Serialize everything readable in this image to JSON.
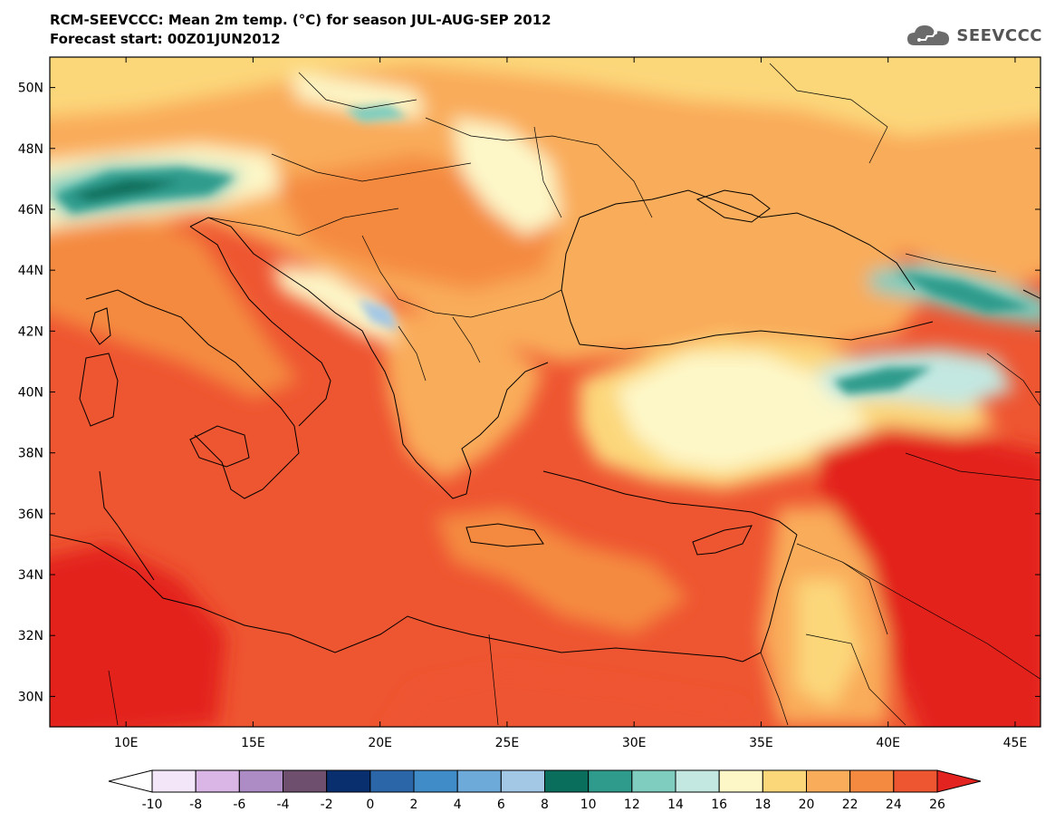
{
  "header": {
    "title": "RCM-SEEVCCC: Mean 2m temp. (°C) for season JUL-AUG-SEP 2012",
    "subtitle": "Forecast start: 00Z01JUN2012"
  },
  "logo": {
    "text": "SEEVCCC",
    "icon": "cloud-icon"
  },
  "map": {
    "lon_range": [
      7,
      46
    ],
    "lat_range": [
      29,
      51
    ],
    "lat_ticks": [
      {
        "value": 50,
        "label": "50N"
      },
      {
        "value": 48,
        "label": "48N"
      },
      {
        "value": 46,
        "label": "46N"
      },
      {
        "value": 44,
        "label": "44N"
      },
      {
        "value": 42,
        "label": "42N"
      },
      {
        "value": 40,
        "label": "40N"
      },
      {
        "value": 38,
        "label": "38N"
      },
      {
        "value": 36,
        "label": "36N"
      },
      {
        "value": 34,
        "label": "34N"
      },
      {
        "value": 32,
        "label": "32N"
      },
      {
        "value": 30,
        "label": "30N"
      }
    ],
    "lon_ticks": [
      {
        "value": 10,
        "label": "10E"
      },
      {
        "value": 15,
        "label": "15E"
      },
      {
        "value": 20,
        "label": "20E"
      },
      {
        "value": 25,
        "label": "25E"
      },
      {
        "value": 30,
        "label": "30E"
      },
      {
        "value": 35,
        "label": "35E"
      },
      {
        "value": 40,
        "label": "40E"
      },
      {
        "value": 45,
        "label": "45E"
      }
    ]
  },
  "colorbar": {
    "labels": [
      "-10",
      "-8",
      "-6",
      "-4",
      "-2",
      "0",
      "2",
      "4",
      "6",
      "8",
      "10",
      "12",
      "14",
      "16",
      "18",
      "20",
      "22",
      "24",
      "26"
    ],
    "under_color": "#ffffff",
    "over_color": "#e3231f",
    "colors": [
      "#f2e6f8",
      "#d9b6e6",
      "#ad8cc5",
      "#6e4f6e",
      "#0a2f6e",
      "#2b67a8",
      "#3f8cc8",
      "#6eaad9",
      "#a3c8e6",
      "#0a6e5c",
      "#2f9b8c",
      "#7ecdbf",
      "#c3e8e1",
      "#fdf7c8",
      "#fcd77a",
      "#f9ac5a",
      "#f48a3f",
      "#ee5531"
    ]
  }
}
